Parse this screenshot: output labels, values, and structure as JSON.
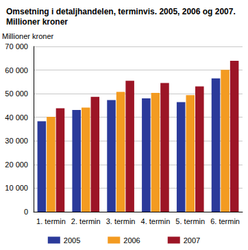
{
  "chart_data": {
    "type": "bar",
    "title": "Omsetning i detaljhandelen, terminvis. 2005, 2006 og 2007. Millioner kroner",
    "y_label": "Millioner kroner",
    "categories": [
      "1. termin",
      "2. termin",
      "3. termin",
      "4. termin",
      "5. termin",
      "6. termin"
    ],
    "series": [
      {
        "name": "2005",
        "color": "#2b3a9a",
        "values": [
          38300,
          43100,
          47300,
          48000,
          46400,
          56500
        ]
      },
      {
        "name": "2006",
        "color": "#f39b21",
        "values": [
          40200,
          44100,
          50800,
          50300,
          49400,
          60100
        ]
      },
      {
        "name": "2007",
        "color": "#9c1526",
        "values": [
          43800,
          48700,
          55500,
          54500,
          53100,
          63900
        ]
      }
    ],
    "ylim": [
      0,
      70000
    ],
    "yticks": [
      0,
      {
        "value": 10000,
        "label": "10 000"
      },
      {
        "value": 20000,
        "label": "20 000"
      },
      {
        "value": 30000,
        "label": "30 000"
      },
      {
        "value": 40000,
        "label": "40 000"
      },
      {
        "value": 50000,
        "label": "50 000"
      },
      {
        "value": 60000,
        "label": "60 000"
      },
      {
        "value": 70000,
        "label": "70 000"
      }
    ],
    "grid": true,
    "legend": "bottom"
  }
}
